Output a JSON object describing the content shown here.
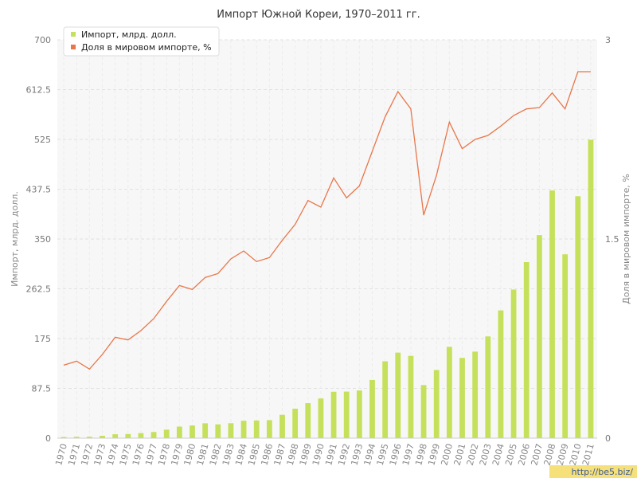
{
  "chart_data": {
    "type": "bar+line",
    "title": "Импорт Южной Кореи, 1970–2011 гг.",
    "categories": [
      "1970",
      "1971",
      "1972",
      "1973",
      "1974",
      "1975",
      "1976",
      "1977",
      "1978",
      "1979",
      "1980",
      "1981",
      "1982",
      "1983",
      "1984",
      "1985",
      "1986",
      "1987",
      "1988",
      "1989",
      "1990",
      "1991",
      "1992",
      "1993",
      "1994",
      "1995",
      "1996",
      "1997",
      "1998",
      "1999",
      "2000",
      "2001",
      "2002",
      "2003",
      "2004",
      "2005",
      "2006",
      "2007",
      "2008",
      "2009",
      "2010",
      "2011"
    ],
    "series": [
      {
        "name": "Импорт, млрд. долл.",
        "type": "bar",
        "axis": "left",
        "color": "#c5e05a",
        "values": [
          2,
          2.4,
          2.5,
          4.2,
          6.9,
          7.3,
          8.8,
          10.8,
          15.0,
          20.3,
          22.3,
          26.1,
          24.3,
          26.2,
          30.6,
          31.1,
          31.6,
          41.0,
          51.8,
          61.5,
          69.8,
          81.5,
          81.8,
          83.8,
          102.3,
          135.1,
          150.3,
          144.6,
          93.3,
          119.8,
          160.5,
          141.1,
          152.1,
          178.8,
          224.5,
          261.2,
          309.4,
          356.8,
          435.3,
          323.1,
          425.2,
          524.4
        ]
      },
      {
        "name": "Доля в мировом импорте, %",
        "type": "line",
        "axis": "right",
        "color": "#e8764a",
        "values": [
          0.55,
          0.58,
          0.52,
          0.63,
          0.76,
          0.74,
          0.81,
          0.9,
          1.03,
          1.15,
          1.12,
          1.21,
          1.24,
          1.35,
          1.41,
          1.33,
          1.36,
          1.49,
          1.61,
          1.79,
          1.74,
          1.96,
          1.81,
          1.9,
          2.16,
          2.42,
          2.61,
          2.48,
          1.68,
          1.98,
          2.38,
          2.18,
          2.25,
          2.28,
          2.35,
          2.43,
          2.48,
          2.49,
          2.6,
          2.48,
          2.76,
          2.76
        ]
      }
    ],
    "y_left": {
      "label": "Импорт, млрд. долл.",
      "ylim": [
        0,
        700
      ],
      "ticks": [
        "0",
        "87.5",
        "175",
        "262.5",
        "350",
        "437.5",
        "525",
        "612.5",
        "700"
      ]
    },
    "y_right": {
      "label": "Доля в мировом импорте, %",
      "ylim": [
        0,
        3
      ],
      "ticks": [
        "0",
        "1.5",
        "3"
      ]
    },
    "grid": true,
    "legend_position": "top-left"
  },
  "watermark": "http://be5.biz/"
}
